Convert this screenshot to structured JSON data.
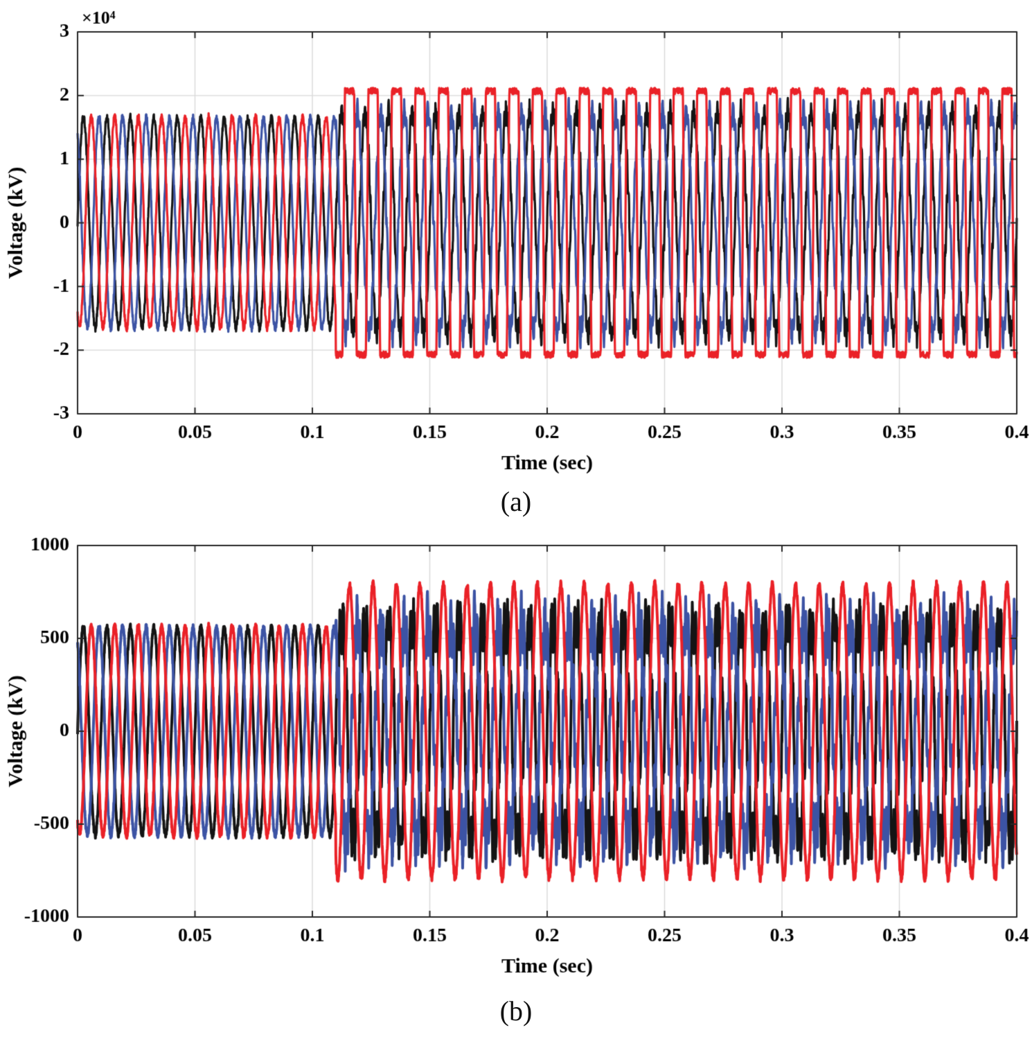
{
  "page": {
    "background": "#ffffff"
  },
  "chart_data": [
    {
      "type": "line",
      "caption": "(a)",
      "xlabel": "Time (sec)",
      "ylabel": "Voltage (kV)",
      "y_multiplier_label": "×10⁴",
      "xlim": [
        0,
        0.4
      ],
      "ylim": [
        -30000,
        30000
      ],
      "xticks": [
        0,
        0.05,
        0.1,
        0.15,
        0.2,
        0.25,
        0.3,
        0.35,
        0.4
      ],
      "xtick_labels": [
        "0",
        "0.05",
        "0.1",
        "0.15",
        "0.2",
        "0.25",
        "0.3",
        "0.35",
        "0.4"
      ],
      "yticks": [
        -30000,
        -20000,
        -10000,
        0,
        10000,
        20000,
        30000
      ],
      "ytick_labels": [
        "-3",
        "-2",
        "-1",
        "0",
        "1",
        "2",
        "3"
      ],
      "grid": true,
      "grid_color": "#d9d9d9",
      "axis_color": "#262626",
      "event_time": 0.11,
      "sample_step": 0.0001,
      "series": [
        {
          "name": "phase-black",
          "color": "#141414",
          "line_width": 3.2,
          "freq": 100,
          "phase_deg": 0,
          "pre": {
            "amp": 16500,
            "noise": 650,
            "harm_mult": 0,
            "harm_amp": 0,
            "clip": null
          },
          "post": {
            "amp": 17400,
            "noise": 950,
            "harm_mult": 13,
            "harm_amp": 1300,
            "clip": null
          }
        },
        {
          "name": "phase-blue",
          "color": "#3c53a4",
          "line_width": 3.2,
          "freq": 100,
          "phase_deg": 120,
          "pre": {
            "amp": 16500,
            "noise": 650,
            "harm_mult": 0,
            "harm_amp": 0,
            "clip": null
          },
          "post": {
            "amp": 17500,
            "noise": 950,
            "harm_mult": 11,
            "harm_amp": 1300,
            "clip": null
          }
        },
        {
          "name": "phase-red",
          "color": "#ea2127",
          "line_width": 3.2,
          "freq": 100,
          "phase_deg": -120,
          "pre": {
            "amp": 16600,
            "noise": 650,
            "harm_mult": 0,
            "harm_amp": 0,
            "clip": null
          },
          "post": {
            "amp": 62000,
            "noise": 500,
            "harm_mult": 0,
            "harm_amp": 0,
            "clip": 20700
          }
        }
      ]
    },
    {
      "type": "line",
      "caption": "(b)",
      "xlabel": "Time (sec)",
      "ylabel": "Voltage (kV)",
      "y_multiplier_label": "",
      "xlim": [
        0,
        0.4
      ],
      "ylim": [
        -1000,
        1000
      ],
      "xticks": [
        0,
        0.05,
        0.1,
        0.15,
        0.2,
        0.25,
        0.3,
        0.35,
        0.4
      ],
      "xtick_labels": [
        "0",
        "0.05",
        "0.1",
        "0.15",
        "0.2",
        "0.25",
        "0.3",
        "0.35",
        "0.4"
      ],
      "yticks": [
        -1000,
        -500,
        0,
        500,
        1000
      ],
      "ytick_labels": [
        "-1000",
        "-500",
        "0",
        "500",
        "1000"
      ],
      "grid": true,
      "grid_color": "#d9d9d9",
      "axis_color": "#262626",
      "event_time": 0.11,
      "sample_step": 0.0001,
      "series": [
        {
          "name": "phase-black",
          "color": "#141414",
          "line_width": 4,
          "freq": 100,
          "phase_deg": 0,
          "pre": {
            "amp": 560,
            "noise": 18,
            "harm_mult": 0,
            "harm_amp": 0,
            "clip": null
          },
          "post": {
            "amp": 590,
            "noise": 70,
            "harm_mult": 7,
            "harm_amp": 110,
            "clip": null
          }
        },
        {
          "name": "phase-blue",
          "color": "#3c53a4",
          "line_width": 4,
          "freq": 100,
          "phase_deg": 120,
          "pre": {
            "amp": 560,
            "noise": 18,
            "harm_mult": 0,
            "harm_amp": 0,
            "clip": null
          },
          "post": {
            "amp": 580,
            "noise": 70,
            "harm_mult": 9,
            "harm_amp": 110,
            "clip": null
          }
        },
        {
          "name": "phase-red",
          "color": "#ea2127",
          "line_width": 4,
          "freq": 100,
          "phase_deg": -120,
          "pre": {
            "amp": 565,
            "noise": 18,
            "harm_mult": 0,
            "harm_amp": 0,
            "clip": null
          },
          "post": {
            "amp": 790,
            "noise": 22,
            "harm_mult": 0,
            "harm_amp": 0,
            "clip": null
          }
        }
      ]
    }
  ]
}
